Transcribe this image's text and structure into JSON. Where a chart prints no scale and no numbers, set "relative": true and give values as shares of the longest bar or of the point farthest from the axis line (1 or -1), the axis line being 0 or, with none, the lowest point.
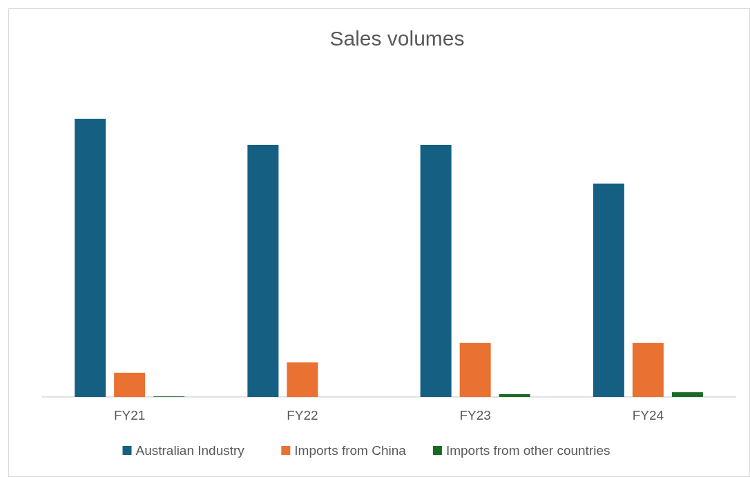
{
  "chart_data": {
    "type": "bar",
    "title": "Sales volumes",
    "categories": [
      "FY21",
      "FY22",
      "FY23",
      "FY24"
    ],
    "relative": true,
    "legend": "bottom",
    "series": [
      {
        "name": "Australian Industry",
        "color": "#156082",
        "values": [
          1,
          0.906,
          0.906,
          0.767
        ]
      },
      {
        "name": "Imports from China",
        "color": "#e97132",
        "values": [
          0.087,
          0.124,
          0.194,
          0.194
        ]
      },
      {
        "name": "Imports from other countries",
        "color": "#196b24",
        "values": [
          0.002,
          0,
          0.01,
          0.017
        ]
      }
    ]
  }
}
